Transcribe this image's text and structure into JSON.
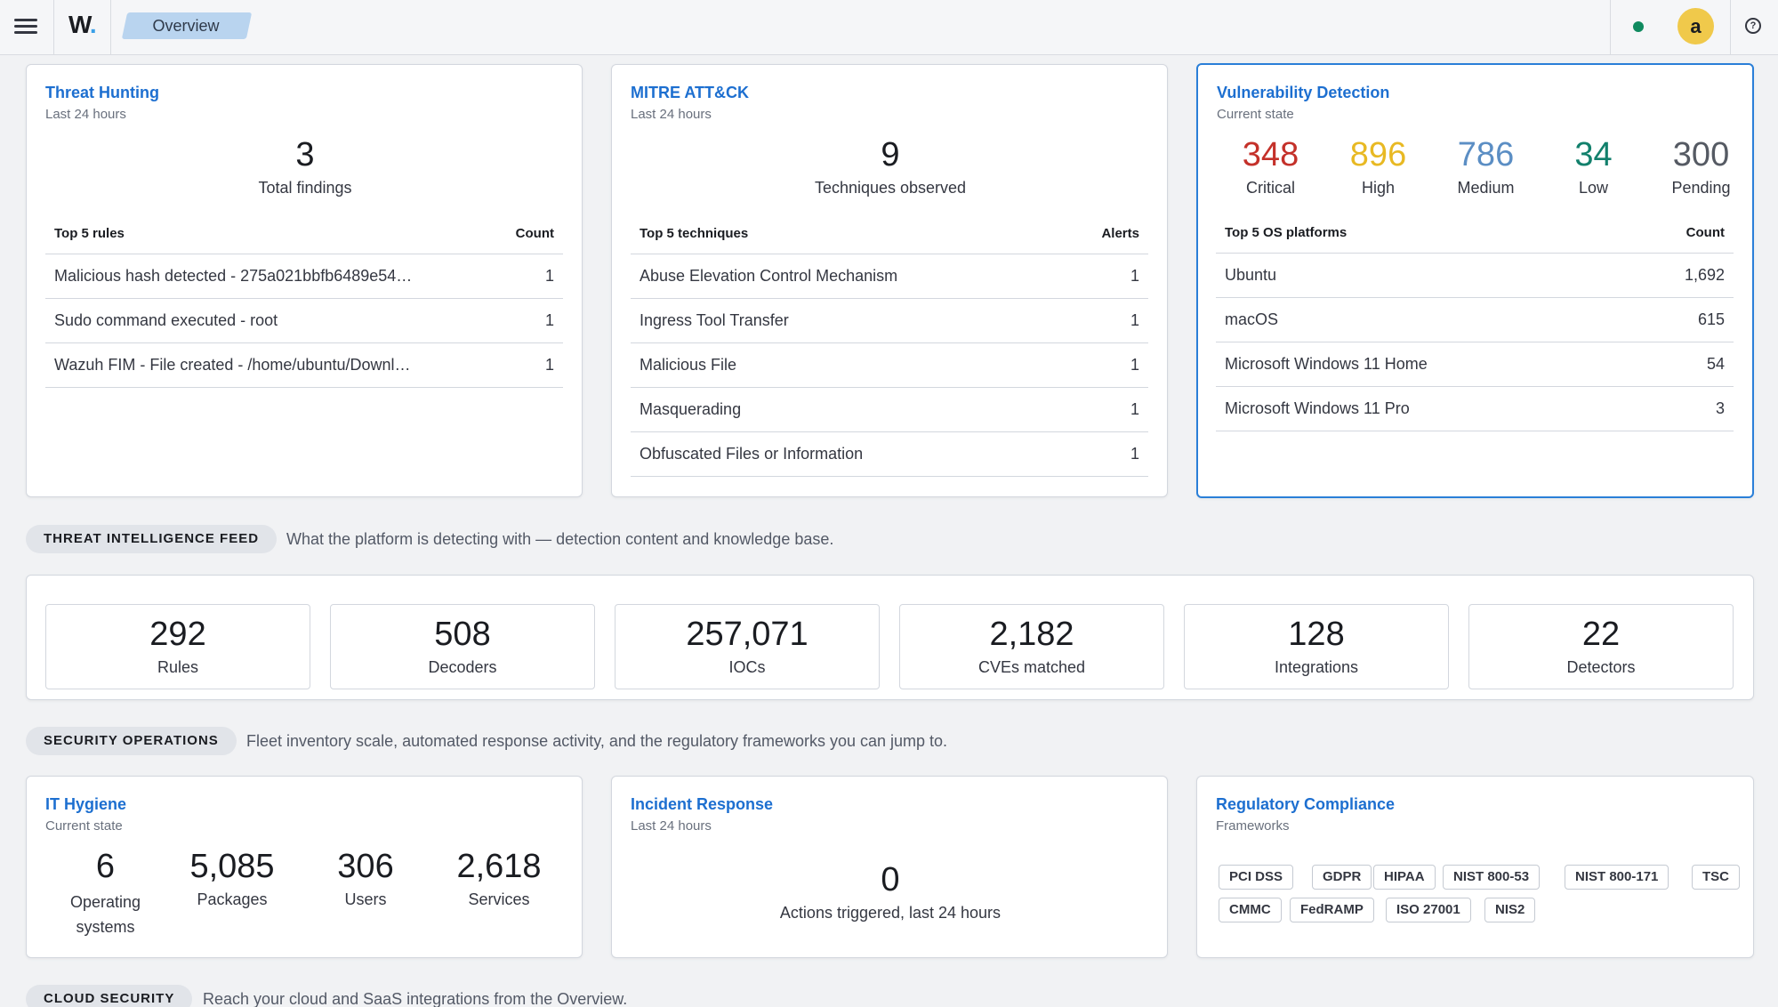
{
  "header": {
    "logo_letter": "W",
    "logo_dot": ".",
    "tab_label": "Overview",
    "avatar_letter": "a",
    "help_glyph": "?",
    "status_color": "#0f8a5f"
  },
  "threat_hunting": {
    "title": "Threat Hunting",
    "subtitle": "Last 24 hours",
    "total": "3",
    "total_label": "Total findings",
    "col_name": "Top 5 rules",
    "col_count": "Count",
    "rows": [
      {
        "name": "Malicious hash detected - 275a021bbfb6489e54…",
        "count": "1"
      },
      {
        "name": "Sudo command executed - root",
        "count": "1"
      },
      {
        "name": "Wazuh FIM - File created - /home/ubuntu/Downl…",
        "count": "1"
      }
    ]
  },
  "mitre": {
    "title": "MITRE ATT&CK",
    "subtitle": "Last 24 hours",
    "total": "9",
    "total_label": "Techniques observed",
    "col_name": "Top 5 techniques",
    "col_count": "Alerts",
    "rows": [
      {
        "name": "Abuse Elevation Control Mechanism",
        "count": "1"
      },
      {
        "name": "Ingress Tool Transfer",
        "count": "1"
      },
      {
        "name": "Malicious File",
        "count": "1"
      },
      {
        "name": "Masquerading",
        "count": "1"
      },
      {
        "name": "Obfuscated Files or Information",
        "count": "1"
      }
    ]
  },
  "vulnerability": {
    "title": "Vulnerability Detection",
    "subtitle": "Current state",
    "severities": [
      {
        "value": "348",
        "label": "Critical",
        "color": "#c4312a"
      },
      {
        "value": "896",
        "label": "High",
        "color": "#e8b923"
      },
      {
        "value": "786",
        "label": "Medium",
        "color": "#5b8ec4"
      },
      {
        "value": "34",
        "label": "Low",
        "color": "#12806c"
      },
      {
        "value": "300",
        "label": "Pending",
        "color": "#555a63"
      }
    ],
    "col_name": "Top 5 OS platforms",
    "col_count": "Count",
    "rows": [
      {
        "name": "Ubuntu",
        "count": "1,692"
      },
      {
        "name": "macOS",
        "count": "615"
      },
      {
        "name": "Microsoft Windows 11 Home",
        "count": "54"
      },
      {
        "name": "Microsoft Windows 11 Pro",
        "count": "3"
      }
    ]
  },
  "threat_intel": {
    "badge": "THREAT INTELLIGENCE FEED",
    "description": "What the platform is detecting with — detection content and knowledge base.",
    "stats": [
      {
        "value": "292",
        "label": "Rules"
      },
      {
        "value": "508",
        "label": "Decoders"
      },
      {
        "value": "257,071",
        "label": "IOCs"
      },
      {
        "value": "2,182",
        "label": "CVEs matched"
      },
      {
        "value": "128",
        "label": "Integrations"
      },
      {
        "value": "22",
        "label": "Detectors"
      }
    ]
  },
  "security_ops": {
    "badge": "SECURITY OPERATIONS",
    "description": "Fleet inventory scale, automated response activity, and the regulatory frameworks you can jump to."
  },
  "it_hygiene": {
    "title": "IT Hygiene",
    "subtitle": "Current state",
    "stats": [
      {
        "value": "6",
        "label": "Operating systems"
      },
      {
        "value": "5,085",
        "label": "Packages"
      },
      {
        "value": "306",
        "label": "Users"
      },
      {
        "value": "2,618",
        "label": "Services"
      }
    ]
  },
  "incident_response": {
    "title": "Incident Response",
    "subtitle": "Last 24 hours",
    "total": "0",
    "total_label": "Actions triggered, last 24 hours"
  },
  "compliance": {
    "title": "Regulatory Compliance",
    "subtitle": "Frameworks",
    "chips": [
      "PCI DSS",
      "GDPR",
      "HIPAA",
      "NIST 800-53",
      "NIST 800-171",
      "TSC",
      "CMMC",
      "FedRAMP",
      "ISO 27001",
      "NIS2"
    ]
  },
  "cloud": {
    "badge": "CLOUD SECURITY",
    "description": "Reach your cloud and SaaS integrations from the Overview."
  }
}
